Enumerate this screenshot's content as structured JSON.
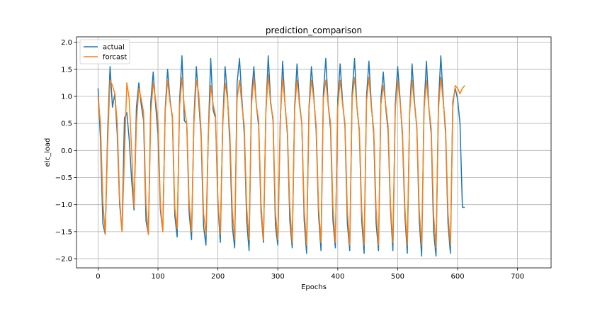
{
  "chart_data": {
    "type": "line",
    "title": "prediction_comparison",
    "xlabel": "Epochs",
    "ylabel": "elc_load",
    "xlim": [
      -36,
      756
    ],
    "ylim": [
      -2.17,
      2.1
    ],
    "xticks": [
      0,
      100,
      200,
      300,
      400,
      500,
      600,
      700
    ],
    "yticks": [
      -2.0,
      -1.5,
      -1.0,
      -0.5,
      0.0,
      0.5,
      1.0,
      1.5,
      2.0
    ],
    "x_tick_labels": [
      "0",
      "100",
      "200",
      "300",
      "400",
      "500",
      "600",
      "700"
    ],
    "y_tick_labels": [
      "−2.0",
      "−1.5",
      "−1.0",
      "−0.5",
      "0.0",
      "0.5",
      "1.0",
      "1.5",
      "2.0"
    ],
    "grid": true,
    "legend_position": "upper-left",
    "x_start": 0,
    "x_step": 4,
    "series": [
      {
        "name": "actual",
        "color": "#1f77b4",
        "values": [
          1.15,
          0.2,
          -1.35,
          -1.55,
          0.35,
          1.55,
          0.8,
          1.05,
          0.3,
          -1.0,
          -1.5,
          0.6,
          0.7,
          0.2,
          -0.55,
          -1.1,
          0.8,
          1.25,
          0.85,
          0.55,
          -1.3,
          -1.55,
          0.9,
          1.45,
          0.85,
          0.3,
          -1.1,
          -1.5,
          0.75,
          1.5,
          0.95,
          0.6,
          -1.2,
          -1.6,
          0.9,
          1.75,
          0.55,
          0.5,
          -1.15,
          -1.65,
          0.6,
          1.55,
          0.9,
          0.25,
          -1.4,
          -1.75,
          0.3,
          1.7,
          0.75,
          0.6,
          -1.0,
          -1.7,
          0.5,
          1.55,
          1.0,
          0.1,
          -1.4,
          -1.8,
          1.25,
          1.7,
          0.95,
          0.3,
          -1.3,
          -1.85,
          1.0,
          1.55,
          0.85,
          0.45,
          -1.15,
          -1.7,
          0.7,
          1.75,
          0.9,
          0.55,
          -1.4,
          -1.75,
          0.5,
          1.65,
          0.85,
          0.3,
          -1.3,
          -1.8,
          0.8,
          1.6,
          0.9,
          0.5,
          -1.3,
          -1.9,
          0.8,
          1.55,
          1.0,
          0.35,
          -1.2,
          -1.85,
          1.05,
          1.7,
          0.85,
          0.4,
          -1.3,
          -1.8,
          0.95,
          1.6,
          0.9,
          0.45,
          -1.35,
          -1.85,
          1.05,
          1.7,
          0.8,
          0.35,
          -1.3,
          -1.9,
          1.0,
          1.65,
          0.85,
          0.3,
          -1.35,
          -1.85,
          0.95,
          1.45,
          0.8,
          0.35,
          -1.1,
          -1.85,
          0.85,
          1.55,
          0.95,
          0.25,
          -1.2,
          -1.9,
          0.7,
          1.6,
          0.9,
          0.4,
          -1.3,
          -1.95,
          0.8,
          1.65,
          0.8,
          0.3,
          -1.5,
          -1.95,
          0.85,
          1.75,
          0.95,
          0.3,
          -1.35,
          -1.9,
          0.9,
          1.15,
          0.95,
          0.5,
          -1.05,
          -1.05
        ]
      },
      {
        "name": "forcast",
        "color": "#ff7f0e",
        "values": [
          1.0,
          0.5,
          -0.95,
          -1.55,
          0.15,
          1.3,
          1.2,
          1.05,
          0.5,
          -0.9,
          -1.5,
          -0.1,
          1.25,
          0.95,
          0.0,
          -1.05,
          0.5,
          1.15,
          0.95,
          0.7,
          -1.0,
          -1.55,
          0.7,
          1.25,
          0.95,
          0.55,
          -1.0,
          -1.5,
          0.7,
          1.3,
          0.9,
          0.65,
          -1.05,
          -1.45,
          0.8,
          1.35,
          0.8,
          0.5,
          -0.95,
          -1.5,
          0.5,
          1.3,
          1.05,
          0.35,
          -1.15,
          -1.55,
          0.3,
          1.2,
          0.85,
          0.65,
          -0.9,
          -1.55,
          0.45,
          1.25,
          0.95,
          0.3,
          -1.1,
          -1.65,
          0.95,
          1.3,
          0.85,
          0.45,
          -1.05,
          -1.65,
          0.85,
          1.35,
          0.85,
          0.55,
          -1.0,
          -1.65,
          0.7,
          1.4,
          0.85,
          0.6,
          -1.15,
          -1.65,
          0.55,
          1.35,
          0.85,
          0.35,
          -1.05,
          -1.7,
          0.75,
          1.3,
          0.85,
          0.5,
          -1.1,
          -1.75,
          0.75,
          1.3,
          0.95,
          0.45,
          -1.05,
          -1.7,
          0.95,
          1.3,
          0.85,
          0.5,
          -1.05,
          -1.7,
          0.8,
          1.3,
          0.85,
          0.5,
          -1.1,
          -1.75,
          0.95,
          1.35,
          0.8,
          0.4,
          -1.1,
          -1.75,
          0.9,
          1.35,
          0.8,
          0.4,
          -1.1,
          -1.75,
          0.85,
          1.2,
          0.85,
          0.45,
          -1.0,
          -1.7,
          0.75,
          1.3,
          0.9,
          0.35,
          -1.05,
          -1.75,
          0.7,
          1.3,
          0.85,
          0.45,
          -1.1,
          -1.75,
          0.75,
          1.3,
          0.8,
          0.4,
          -1.2,
          -1.8,
          0.75,
          1.35,
          0.9,
          0.4,
          -1.15,
          -1.75,
          0.8,
          1.2,
          1.15,
          1.05,
          1.15,
          1.2
        ]
      }
    ]
  }
}
